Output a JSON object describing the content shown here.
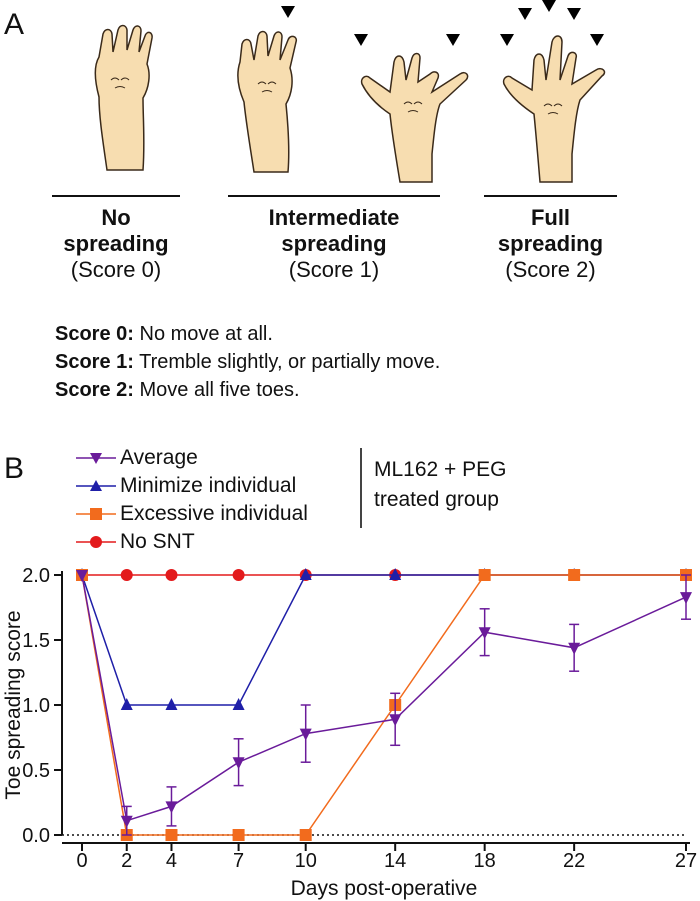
{
  "panel_a": {
    "letter": "A",
    "categories": [
      {
        "title_line1": "No",
        "title_line2": "spreading",
        "score": "(Score 0)"
      },
      {
        "title_line1": "Intermediate",
        "title_line2": "spreading",
        "score": "(Score 1)"
      },
      {
        "title_line1": "Full",
        "title_line2": "spreading",
        "score": "(Score 2)"
      }
    ],
    "definitions": [
      {
        "label": "Score 0:",
        "text": " No move at all."
      },
      {
        "label": "Score 1:",
        "text": " Tremble slightly, or partially move."
      },
      {
        "label": "Score 2:",
        "text": " Move all five toes."
      }
    ],
    "colors": {
      "paw_fill": "#f7ddb0",
      "paw_stroke": "#3a2a1a"
    }
  },
  "panel_b": {
    "letter": "B",
    "group_label_line1": "ML162 + PEG",
    "group_label_line2": "treated group"
  },
  "chart_data": {
    "type": "line",
    "xlabel": "Days post-operative",
    "ylabel": "Toe spreading score",
    "x": [
      0,
      2,
      4,
      7,
      10,
      14,
      18,
      22,
      27
    ],
    "x_tick_labels": [
      "0",
      "2",
      "4",
      "7",
      "10",
      "14",
      "18",
      "22",
      "27"
    ],
    "ylim": [
      0,
      2.0
    ],
    "y_ticks": [
      0.0,
      0.5,
      1.0,
      1.5,
      2.0
    ],
    "y_tick_labels": [
      "0.0",
      "0.5",
      "1.0",
      "1.5",
      "2.0"
    ],
    "baseline": "dotted at y=0",
    "legend_position": "top-left",
    "series": [
      {
        "name": "Average",
        "marker": "triangle-down",
        "color": "#6a1b9a",
        "values": [
          2.0,
          0.11,
          0.22,
          0.56,
          0.78,
          0.89,
          1.56,
          1.44,
          1.83
        ],
        "error": [
          0,
          0.11,
          0.15,
          0.18,
          0.22,
          0.2,
          0.18,
          0.18,
          0.17
        ]
      },
      {
        "name": "Minimize individual",
        "marker": "triangle-up",
        "color": "#1f1fa8",
        "values": [
          2,
          1,
          1,
          1,
          2,
          2,
          2,
          2,
          2
        ]
      },
      {
        "name": "Excessive individual",
        "marker": "square",
        "color": "#f26b1d",
        "values": [
          2,
          0,
          0,
          0,
          0,
          1,
          2,
          2,
          2
        ]
      },
      {
        "name": "No SNT",
        "marker": "circle",
        "color": "#e31a1c",
        "values": [
          2,
          2,
          2,
          2,
          2,
          2,
          2,
          2,
          2
        ]
      }
    ]
  }
}
